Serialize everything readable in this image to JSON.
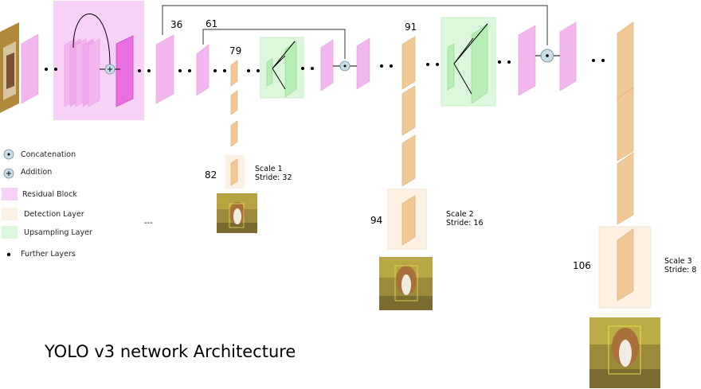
{
  "title": "YOLO v3 network Architecture",
  "layer_numbers": [
    "36",
    "61",
    "79",
    "82",
    "91",
    "94",
    "106"
  ],
  "scales": [
    {
      "label": "Scale 1",
      "stride": "Stride: 32"
    },
    {
      "label": "Scale 2",
      "stride": "Stride: 16"
    },
    {
      "label": "Scale 3",
      "stride": "Stride: 8"
    }
  ],
  "legend": [
    {
      "label": "Concatenation",
      "symbol": "concatenation-icon"
    },
    {
      "label": "Addition",
      "symbol": "addition-icon"
    },
    {
      "label": "Residual Block",
      "color": "#f8d2f6"
    },
    {
      "label": "Detection Layer",
      "color": "#fdf1e3"
    },
    {
      "label": "Upsampling Layer",
      "color": "#ddf7dd"
    },
    {
      "label": "Further Layers",
      "symbol": "dot-icon"
    }
  ],
  "ellipsis_text": "---",
  "colors": {
    "residual": "#f8d2f6",
    "residual_layer": "#f3b6ef",
    "residual_dark": "#e76fe0",
    "detection": "#fdf1e3",
    "detection_layer": "#f2c996",
    "upsampling": "#ddf7dd",
    "upsampling_layer": "#b6efb6",
    "operator": "#c8dde6"
  }
}
